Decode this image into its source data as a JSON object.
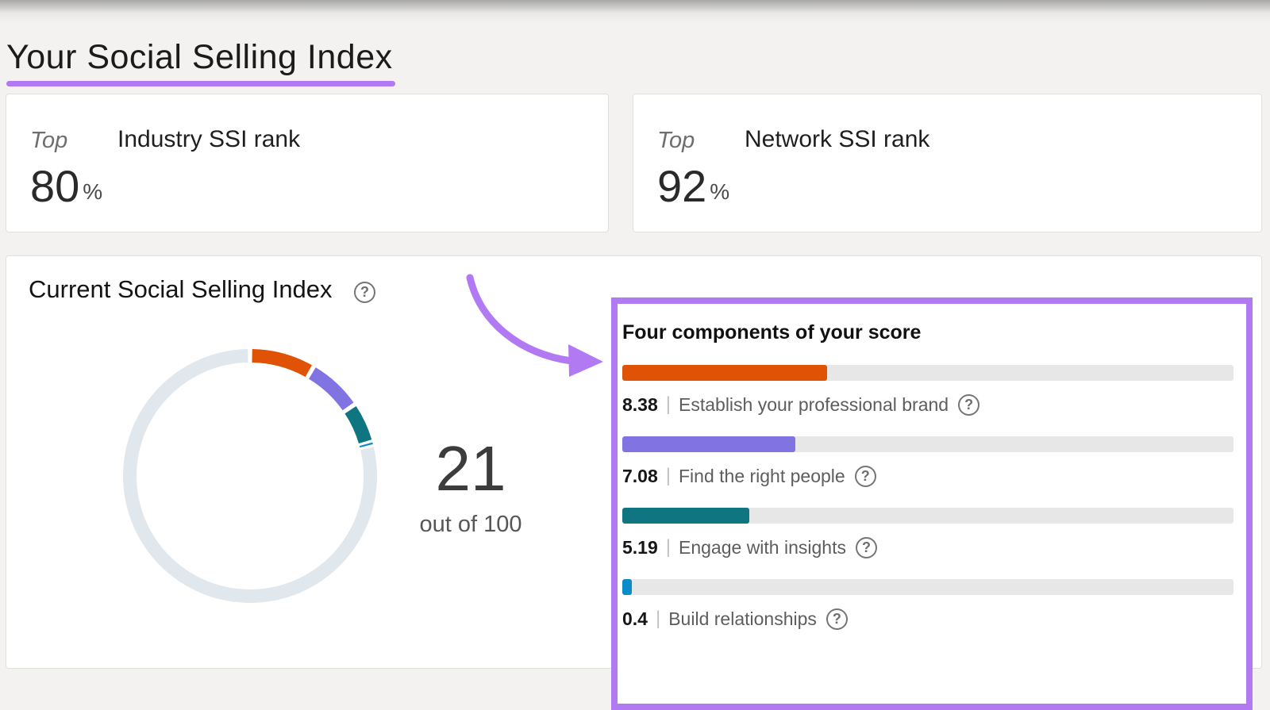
{
  "page": {
    "title": "Your Social Selling Index",
    "accent_color": "#b27af2"
  },
  "icons": {
    "help_glyph": "?"
  },
  "rank_cards": [
    {
      "prefix": "Top",
      "label": "Industry SSI rank",
      "value": "80",
      "unit": "%"
    },
    {
      "prefix": "Top",
      "label": "Network SSI rank",
      "value": "92",
      "unit": "%"
    }
  ],
  "ssi_card": {
    "title": "Current Social Selling Index",
    "score": "21",
    "score_caption": "out of 100"
  },
  "components_panel": {
    "title": "Four components of your score",
    "separator": "|",
    "bar_max": 25,
    "bar_track_color": "#e7e7e7",
    "items": [
      {
        "value": "8.38",
        "label": "Establish your professional brand",
        "color": "#e05206"
      },
      {
        "value": "7.08",
        "label": "Find the right people",
        "color": "#8273e3"
      },
      {
        "value": "5.19",
        "label": "Engage with insights",
        "color": "#0e7581"
      },
      {
        "value": "0.4",
        "label": "Build relationships",
        "color": "#0a8cc7"
      }
    ]
  },
  "chart_data": {
    "type": "pie",
    "subtype": "donut",
    "title": "Current Social Selling Index",
    "center_label": "21",
    "center_sublabel": "out of 100",
    "total": 100,
    "start_angle_deg": 0,
    "direction": "clockwise",
    "series": [
      {
        "name": "Establish your professional brand",
        "value": 8.38,
        "color": "#e05206"
      },
      {
        "name": "Find the right people",
        "value": 7.08,
        "color": "#8273e3"
      },
      {
        "name": "Engage with insights",
        "value": 5.19,
        "color": "#0e7581"
      },
      {
        "name": "Build relationships",
        "value": 0.4,
        "color": "#0a8cc7"
      },
      {
        "name": "Remaining",
        "value": 78.95,
        "color": "#e0e7ed"
      }
    ]
  }
}
